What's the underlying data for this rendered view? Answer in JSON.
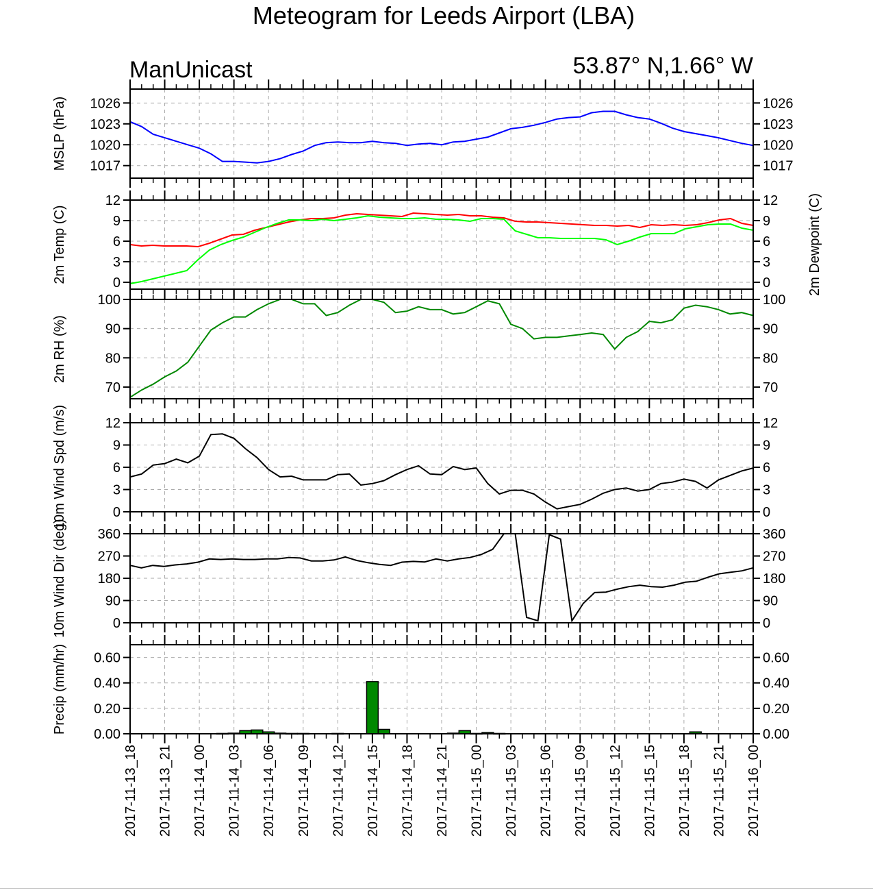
{
  "title": "Meteogram for Leeds Airport (LBA)",
  "left_subtitle": "ManUnicast",
  "right_subtitle": "53.87° N,1.66° W",
  "x_tick_labels": [
    "2017-11-13_18",
    "2017-11-13_21",
    "2017-11-14_00",
    "2017-11-14_03",
    "2017-11-14_06",
    "2017-11-14_09",
    "2017-11-14_12",
    "2017-11-14_15",
    "2017-11-14_18",
    "2017-11-14_21",
    "2017-11-15_00",
    "2017-11-15_03",
    "2017-11-15_06",
    "2017-11-15_09",
    "2017-11-15_12",
    "2017-11-15_15",
    "2017-11-15_18",
    "2017-11-15_21",
    "2017-11-16_00"
  ],
  "chart_data": [
    {
      "type": "line",
      "ylabel": "MSLP (hPa)",
      "ylim": [
        1015.2,
        1028
      ],
      "yticks": [
        1017,
        1020,
        1023,
        1026
      ],
      "xlim": [
        0,
        54
      ],
      "grid": true,
      "color": "#0000ff",
      "x": [
        0,
        1,
        2,
        3,
        4,
        5,
        6,
        7,
        8,
        9,
        10,
        11,
        12,
        13,
        14,
        15,
        16,
        17,
        18,
        19,
        20,
        21,
        22,
        23,
        24,
        25,
        26,
        27,
        28,
        29,
        30,
        31,
        32,
        33,
        34,
        35,
        36,
        37,
        38,
        39,
        40,
        41,
        42,
        43,
        44,
        45,
        46,
        47,
        48,
        49,
        50,
        51,
        52,
        53,
        54
      ],
      "values": [
        1023.3,
        1022.6,
        1021.5,
        1021.0,
        1020.5,
        1020.0,
        1019.5,
        1018.7,
        1017.6,
        1017.6,
        1017.5,
        1017.4,
        1017.6,
        1018.0,
        1018.6,
        1019.1,
        1019.9,
        1020.3,
        1020.4,
        1020.3,
        1020.3,
        1020.5,
        1020.3,
        1020.2,
        1019.9,
        1020.1,
        1020.2,
        1020.0,
        1020.4,
        1020.5,
        1020.8,
        1021.1,
        1021.7,
        1022.3,
        1022.5,
        1022.8,
        1023.2,
        1023.7,
        1023.9,
        1024.0,
        1024.6,
        1024.8,
        1024.8,
        1024.3,
        1023.9,
        1023.7,
        1023.1,
        1022.4,
        1021.9,
        1021.6,
        1021.3,
        1021.0,
        1020.6,
        1020.2,
        1019.9
      ]
    },
    {
      "type": "line",
      "ylabel": "2m Temp (C)",
      "ylabel_right": "2m Dewpoint (C)",
      "ylim": [
        -1,
        12
      ],
      "yticks": [
        0,
        3,
        6,
        9,
        12
      ],
      "xlim": [
        0,
        54
      ],
      "grid": true,
      "series": [
        {
          "color": "#ff0000",
          "values": [
            5.5,
            5.3,
            5.4,
            5.3,
            5.3,
            5.3,
            5.2,
            5.7,
            6.3,
            6.9,
            7.0,
            7.6,
            8.0,
            8.4,
            8.8,
            9.1,
            9.3,
            9.3,
            9.4,
            9.8,
            10.0,
            9.9,
            9.8,
            9.7,
            9.6,
            10.1,
            10.0,
            9.9,
            9.8,
            9.9,
            9.7,
            9.7,
            9.5,
            9.4,
            8.9,
            8.8,
            8.8,
            8.7,
            8.6,
            8.5,
            8.4,
            8.3,
            8.3,
            8.2,
            8.3,
            8.0,
            8.4,
            8.3,
            8.4,
            8.3,
            8.4,
            8.7,
            9.1,
            9.3,
            8.6,
            8.3
          ]
        },
        {
          "color": "#00ff00",
          "values": [
            -0.2,
            0.1,
            0.5,
            0.9,
            1.3,
            1.7,
            3.3,
            4.7,
            5.5,
            6.1,
            6.6,
            7.3,
            8.0,
            8.6,
            9.1,
            9.1,
            9.0,
            9.2,
            9.0,
            9.2,
            9.4,
            9.7,
            9.5,
            9.4,
            9.3,
            9.3,
            9.4,
            9.2,
            9.2,
            9.1,
            8.9,
            9.3,
            9.3,
            9.2,
            7.5,
            7.0,
            6.5,
            6.5,
            6.4,
            6.4,
            6.4,
            6.4,
            6.2,
            5.5,
            6.0,
            6.6,
            7.1,
            7.1,
            7.1,
            7.8,
            8.1,
            8.4,
            8.5,
            8.5,
            7.9,
            7.6
          ]
        }
      ]
    },
    {
      "type": "line",
      "ylabel": "2m RH (%)",
      "ylim": [
        66,
        100
      ],
      "yticks": [
        70,
        80,
        90,
        100
      ],
      "xlim": [
        0,
        54
      ],
      "grid": true,
      "color": "#008800",
      "values": [
        66.5,
        69,
        71,
        73.5,
        75.5,
        78.5,
        84,
        89.5,
        92,
        94,
        94,
        96.5,
        98.5,
        100,
        100,
        98.5,
        98.5,
        94.5,
        95.5,
        98,
        100,
        100,
        99,
        95.5,
        96,
        97.5,
        96.5,
        96.5,
        95,
        95.5,
        97.5,
        99.5,
        98.5,
        91.5,
        90,
        86.5,
        87,
        87,
        87.5,
        88,
        88.5,
        88,
        83,
        87,
        89,
        92.5,
        92,
        93,
        97,
        98,
        97.5,
        96.5,
        95,
        95.5,
        94.5
      ]
    },
    {
      "type": "line",
      "ylabel": "10m Wind Spd (m/s)",
      "ylim": [
        0,
        12
      ],
      "yticks": [
        0,
        3,
        6,
        9,
        12
      ],
      "xlim": [
        0,
        54
      ],
      "grid": true,
      "color": "#000000",
      "values": [
        4.7,
        5.1,
        6.3,
        6.5,
        7.1,
        6.6,
        7.5,
        10.4,
        10.5,
        9.9,
        8.5,
        7.3,
        5.7,
        4.7,
        4.8,
        4.3,
        4.3,
        4.3,
        5.0,
        5.1,
        3.6,
        3.8,
        4.2,
        5.0,
        5.7,
        6.2,
        5.1,
        5.0,
        6.1,
        5.7,
        5.9,
        3.8,
        2.4,
        2.9,
        2.9,
        2.4,
        1.3,
        0.4,
        0.7,
        1.0,
        1.7,
        2.5,
        3.0,
        3.2,
        2.8,
        3.0,
        3.8,
        4.0,
        4.4,
        4.1,
        3.2,
        4.3,
        4.9,
        5.5,
        5.9
      ]
    },
    {
      "type": "line",
      "ylabel": "10m Wind Dir (deg)",
      "ylim": [
        0,
        360
      ],
      "yticks": [
        0,
        90,
        180,
        270,
        360
      ],
      "xlim": [
        0,
        54
      ],
      "grid": true,
      "color": "#000000",
      "values": [
        232,
        222,
        232,
        228,
        234,
        238,
        245,
        258,
        256,
        258,
        256,
        256,
        258,
        258,
        264,
        262,
        250,
        250,
        254,
        266,
        252,
        243,
        236,
        232,
        245,
        248,
        246,
        258,
        250,
        258,
        264,
        276,
        297,
        360,
        360,
        22,
        8,
        356,
        338,
        8,
        78,
        122,
        124,
        136,
        146,
        152,
        146,
        144,
        152,
        164,
        168,
        184,
        198,
        204,
        210,
        222
      ]
    },
    {
      "type": "bar",
      "ylabel": "Precip (mm/hr)",
      "ylim": [
        0,
        0.7
      ],
      "yticks": [
        0,
        0.2,
        0.4,
        0.6
      ],
      "ytick_labels": [
        "0.00",
        "0.20",
        "0.40",
        "0.60"
      ],
      "xlim": [
        0,
        54
      ],
      "grid": true,
      "color": "#008800",
      "x": [
        8,
        9,
        10,
        11,
        12,
        13,
        14,
        15,
        18,
        21,
        22,
        28,
        29,
        30,
        31,
        32,
        49
      ],
      "values": [
        0.003,
        0.005,
        0.025,
        0.03,
        0.015,
        0.005,
        0.003,
        0.003,
        0.003,
        0.41,
        0.035,
        0.005,
        0.025,
        0.003,
        0.01,
        0.003,
        0.015
      ]
    }
  ]
}
